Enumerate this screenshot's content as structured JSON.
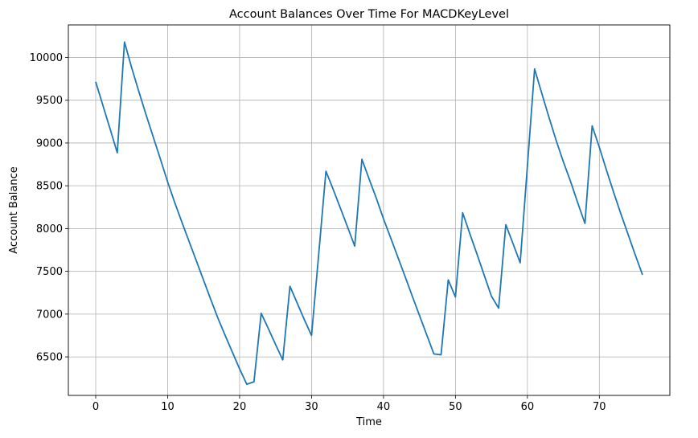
{
  "chart_data": {
    "type": "line",
    "title": "Account Balances Over Time For MACDKeyLevel",
    "xlabel": "Time",
    "ylabel": "Account Balance",
    "xlim": [
      -3.8,
      79.8
    ],
    "ylim": [
      6050,
      10380
    ],
    "xticks": [
      0,
      10,
      20,
      30,
      40,
      50,
      60,
      70
    ],
    "yticks": [
      6500,
      7000,
      7500,
      8000,
      8500,
      9000,
      9500,
      10000
    ],
    "grid": true,
    "line_color": "#1f77b4",
    "series": [
      {
        "x": [
          0,
          1,
          2,
          3,
          4,
          5,
          6,
          7,
          8,
          9,
          10,
          11,
          12,
          13,
          14,
          15,
          16,
          17,
          18,
          19,
          20,
          21,
          22,
          23,
          24,
          25,
          26,
          27,
          28,
          29,
          30,
          31,
          32,
          33,
          34,
          35,
          36,
          37,
          38,
          39,
          40,
          41,
          42,
          43,
          44,
          45,
          46,
          47,
          48,
          49,
          50,
          51,
          52,
          53,
          54,
          55,
          56,
          57,
          58,
          59,
          60,
          61,
          62,
          63,
          64,
          65,
          66,
          67,
          68,
          69,
          70,
          71,
          72,
          73,
          74,
          75,
          76
        ],
        "y": [
          9715,
          9440,
          9165,
          8885,
          10180,
          9880,
          9600,
          9330,
          9070,
          8810,
          8545,
          8300,
          8070,
          7845,
          7620,
          7395,
          7170,
          6950,
          6750,
          6555,
          6360,
          6180,
          6210,
          7010,
          6830,
          6645,
          6465,
          7325,
          7130,
          6935,
          6750,
          7705,
          8670,
          8460,
          8240,
          8020,
          7795,
          8810,
          8580,
          8355,
          8115,
          7890,
          7665,
          7440,
          7210,
          6985,
          6760,
          6535,
          6525,
          7400,
          7200,
          8185,
          7940,
          7700,
          7455,
          7210,
          7070,
          8045,
          7825,
          7600,
          8730,
          9865,
          9580,
          9300,
          9030,
          8780,
          8550,
          8300,
          8060,
          9200,
          8950,
          8680,
          8420,
          8170,
          7930,
          7690,
          7460
        ]
      }
    ]
  }
}
